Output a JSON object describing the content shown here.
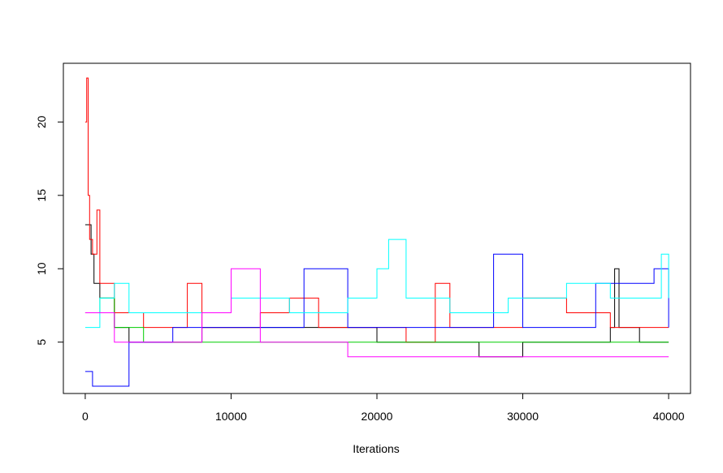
{
  "chart_data": {
    "type": "line",
    "title": "",
    "xlabel": "Iterations",
    "ylabel": "",
    "xlim": [
      -1500,
      41500
    ],
    "ylim": [
      1.5,
      24
    ],
    "x_ticks": [
      0,
      10000,
      20000,
      30000,
      40000
    ],
    "x_tick_labels": [
      "0",
      "10000",
      "20000",
      "30000",
      "40000"
    ],
    "y_ticks": [
      5,
      10,
      15,
      20
    ],
    "y_tick_labels": [
      "5",
      "10",
      "15",
      "20"
    ],
    "grid": false,
    "legend": "none",
    "series": [
      {
        "color": "#000000",
        "values": [
          [
            0,
            13
          ],
          [
            200,
            13
          ],
          [
            400,
            11
          ],
          [
            600,
            9
          ],
          [
            1000,
            8
          ],
          [
            2000,
            6
          ],
          [
            3000,
            5
          ],
          [
            5000,
            5
          ],
          [
            8000,
            6
          ],
          [
            12000,
            6
          ],
          [
            15000,
            6
          ],
          [
            20000,
            5
          ],
          [
            24000,
            5
          ],
          [
            26000,
            5
          ],
          [
            27000,
            4
          ],
          [
            28000,
            4
          ],
          [
            30000,
            5
          ],
          [
            34000,
            5
          ],
          [
            36000,
            6
          ],
          [
            36300,
            10
          ],
          [
            36600,
            6
          ],
          [
            38000,
            5
          ],
          [
            40000,
            5
          ]
        ]
      },
      {
        "color": "#ff0000",
        "values": [
          [
            0,
            20
          ],
          [
            100,
            23
          ],
          [
            200,
            15
          ],
          [
            300,
            12
          ],
          [
            500,
            11
          ],
          [
            800,
            14
          ],
          [
            1000,
            9
          ],
          [
            2000,
            7
          ],
          [
            4000,
            6
          ],
          [
            7000,
            9
          ],
          [
            8000,
            6
          ],
          [
            12000,
            7
          ],
          [
            14000,
            8
          ],
          [
            16000,
            6
          ],
          [
            20000,
            6
          ],
          [
            22000,
            5
          ],
          [
            24000,
            9
          ],
          [
            25000,
            6
          ],
          [
            28000,
            6
          ],
          [
            30000,
            8
          ],
          [
            33000,
            7
          ],
          [
            36000,
            6
          ],
          [
            40000,
            6
          ]
        ]
      },
      {
        "color": "#00cd00",
        "values": [
          [
            0,
            7
          ],
          [
            500,
            7
          ],
          [
            1000,
            8
          ],
          [
            2000,
            6
          ],
          [
            4000,
            5
          ],
          [
            8000,
            5
          ],
          [
            12000,
            5
          ],
          [
            16000,
            5
          ],
          [
            20000,
            5
          ],
          [
            24000,
            5
          ],
          [
            28000,
            5
          ],
          [
            32000,
            5
          ],
          [
            36000,
            5
          ],
          [
            40000,
            5
          ]
        ]
      },
      {
        "color": "#0000ff",
        "values": [
          [
            0,
            3
          ],
          [
            500,
            2
          ],
          [
            1500,
            2
          ],
          [
            2300,
            2
          ],
          [
            3000,
            5
          ],
          [
            6000,
            6
          ],
          [
            10000,
            6
          ],
          [
            15000,
            10
          ],
          [
            18000,
            6
          ],
          [
            22000,
            6
          ],
          [
            26000,
            6
          ],
          [
            28000,
            11
          ],
          [
            30000,
            6
          ],
          [
            35000,
            9
          ],
          [
            38000,
            9
          ],
          [
            39000,
            10
          ],
          [
            40000,
            6
          ]
        ]
      },
      {
        "color": "#00ffff",
        "values": [
          [
            0,
            6
          ],
          [
            500,
            6
          ],
          [
            1000,
            8
          ],
          [
            2000,
            9
          ],
          [
            3000,
            7
          ],
          [
            6000,
            7
          ],
          [
            10000,
            8
          ],
          [
            14000,
            7
          ],
          [
            18000,
            8
          ],
          [
            20000,
            10
          ],
          [
            20800,
            12
          ],
          [
            21000,
            12
          ],
          [
            22000,
            8
          ],
          [
            25000,
            7
          ],
          [
            29000,
            8
          ],
          [
            33000,
            9
          ],
          [
            36000,
            8
          ],
          [
            39500,
            11
          ],
          [
            40000,
            8
          ]
        ]
      },
      {
        "color": "#ff00ff",
        "values": [
          [
            0,
            7
          ],
          [
            1000,
            7
          ],
          [
            2000,
            5
          ],
          [
            4000,
            5
          ],
          [
            8000,
            7
          ],
          [
            10000,
            10
          ],
          [
            12000,
            5
          ],
          [
            15000,
            5
          ],
          [
            18000,
            4
          ],
          [
            20000,
            4
          ],
          [
            24000,
            4
          ],
          [
            28000,
            4
          ],
          [
            32000,
            4
          ],
          [
            36000,
            4
          ],
          [
            40000,
            4
          ]
        ]
      }
    ]
  }
}
